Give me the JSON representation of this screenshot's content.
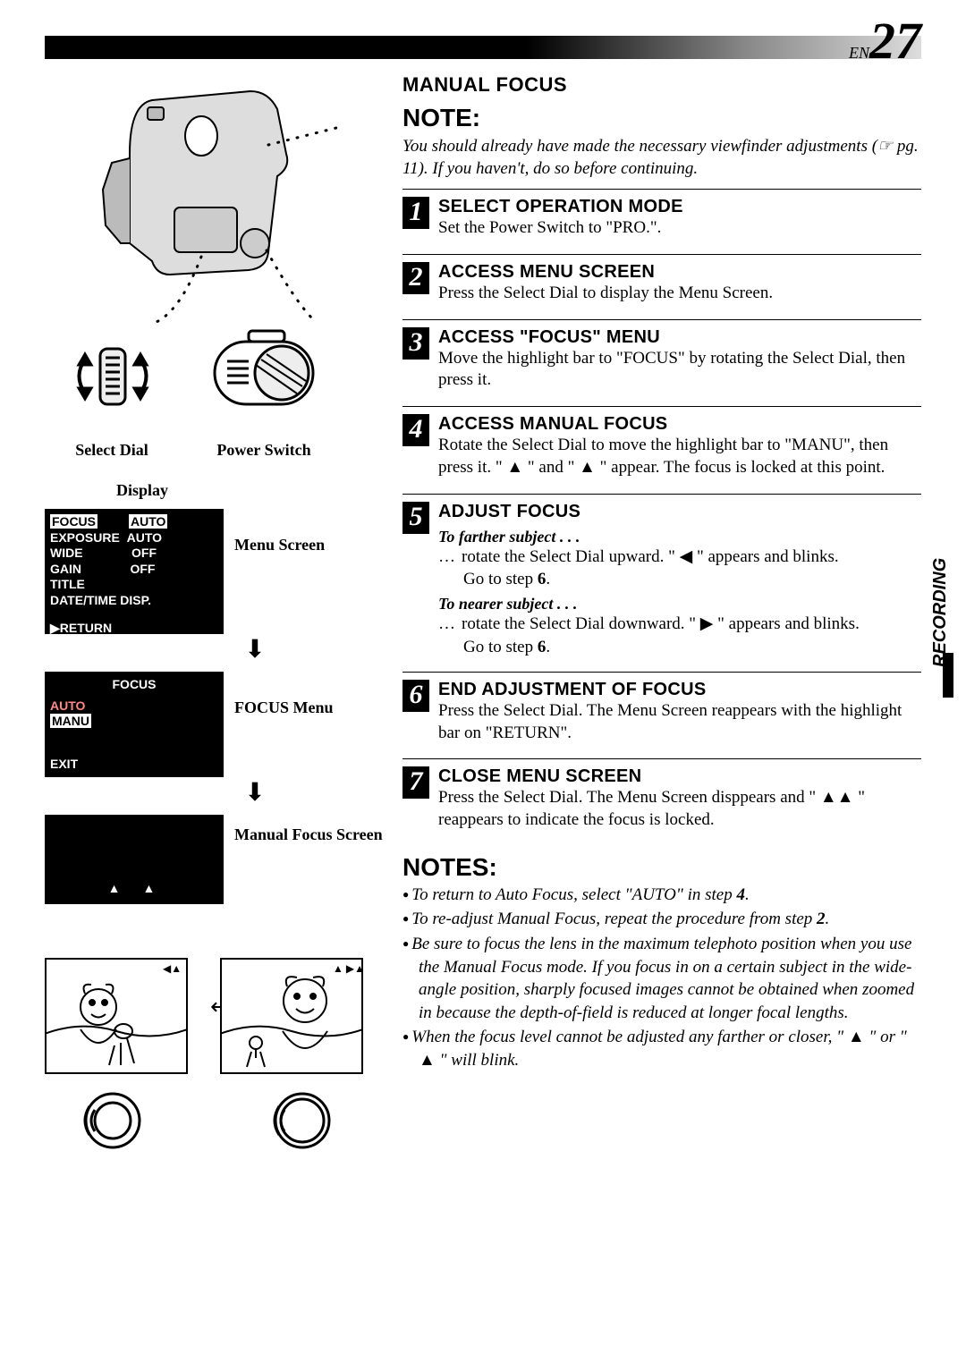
{
  "page": {
    "prefix": "EN",
    "number": "27"
  },
  "side_tab": "RECORDING",
  "left": {
    "dial_label": "Select Dial",
    "switch_label": "Power Switch",
    "display_label": "Display",
    "menu_screen_label": "Menu Screen",
    "focus_menu_label": "FOCUS Menu",
    "manual_focus_label": "Manual Focus Screen",
    "menu": {
      "rows": [
        {
          "l": "FOCUS",
          "r": "AUTO",
          "hl_l": true,
          "hl_r": true
        },
        {
          "l": "EXPOSURE",
          "r": "AUTO"
        },
        {
          "l": "WIDE",
          "r": "OFF"
        },
        {
          "l": "GAIN",
          "r": "OFF"
        },
        {
          "l": "TITLE",
          "r": ""
        },
        {
          "l": "DATE/TIME DISP.",
          "r": ""
        }
      ],
      "return": "▶RETURN"
    },
    "focus_menu": {
      "title": "FOCUS",
      "rows": [
        {
          "t": "AUTO",
          "hl": false
        },
        {
          "t": "MANU",
          "hl": true
        }
      ],
      "exit": "EXIT"
    }
  },
  "right": {
    "section": "MANUAL FOCUS",
    "note_title": "NOTE:",
    "note_body": "You should already have made the necessary viewfinder adjustments (☞ pg. 11). If you haven't, do so before continuing.",
    "steps": [
      {
        "n": "1",
        "head": "SELECT OPERATION MODE",
        "text": "Set the Power Switch to \"PRO.\"."
      },
      {
        "n": "2",
        "head": "ACCESS MENU SCREEN",
        "text": "Press the Select Dial to display the Menu Screen."
      },
      {
        "n": "3",
        "head": "ACCESS \"FOCUS\" MENU",
        "text": "Move the highlight bar to \"FOCUS\" by rotating the Select Dial, then press it."
      },
      {
        "n": "4",
        "head": "ACCESS MANUAL FOCUS",
        "text": "Rotate the Select Dial to move the highlight bar to \"MANU\", then press it. \" ▲ \" and \" ▲ \" appear. The focus is locked at this point."
      },
      {
        "n": "5",
        "head": "ADJUST FOCUS",
        "sub1": "To farther subject . . .",
        "b1": "rotate the Select Dial upward. \" ◀ \" appears and blinks.",
        "g1": "Go to step 6.",
        "sub2": "To nearer subject . . .",
        "b2": "rotate the Select Dial downward. \" ▶ \" appears and blinks.",
        "g2": "Go to step 6."
      },
      {
        "n": "6",
        "head": "END ADJUSTMENT OF FOCUS",
        "text": "Press the Select Dial. The Menu Screen reappears with the highlight bar on \"RETURN\"."
      },
      {
        "n": "7",
        "head": "CLOSE MENU SCREEN",
        "text": "Press the Select Dial. The Menu Screen disppears and \" ▲▲ \" reappears to indicate the focus is locked."
      }
    ],
    "notes_title": "NOTES:",
    "notes": [
      "To return to Auto Focus, select \"AUTO\" in step 4.",
      "To re-adjust Manual Focus, repeat the procedure from step 2.",
      "Be sure to focus the lens in the maximum telephoto position when you use the Manual Focus mode. If you focus in on a certain subject in the wide-angle position, sharply focused images cannot be obtained when zoomed in because the depth-of-field is reduced at longer focal lengths.",
      "When the focus level cannot be adjusted any farther or closer, \" ▲ \" or \" ▲ \" will blink."
    ]
  }
}
